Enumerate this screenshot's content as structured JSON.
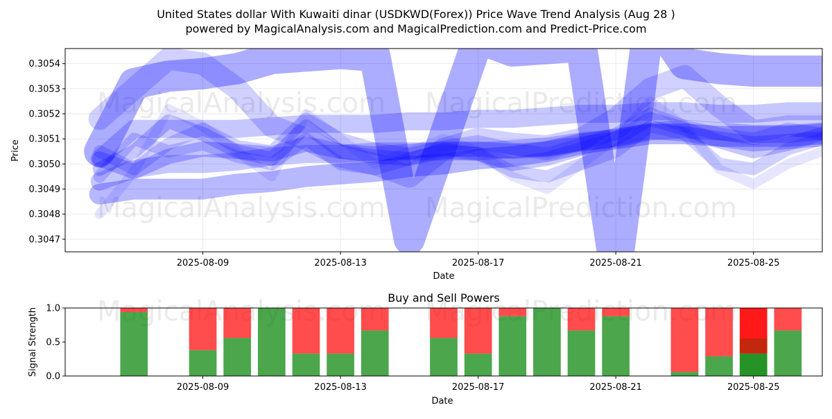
{
  "title_line1": "United States dollar With Kuwaiti dinar (USDKWD(Forex)) Price Wave Trend Analysis (Aug 28 )",
  "title_line2": "powered by MagicalAnalysis.com and MagicalPrediction.com and Predict-Price.com",
  "watermarks": [
    "MagicalAnalysis.com",
    "MagicalPrediction.com"
  ],
  "colors": {
    "wave": "#0000ff",
    "buy": "#008000",
    "sell": "#ff0000"
  },
  "chart_data": [
    {
      "type": "line",
      "title": "",
      "xlabel": "Date",
      "ylabel": "Price",
      "xlim": [
        "2025-08-05",
        "2025-08-27"
      ],
      "ylim": [
        0.30465,
        0.30546
      ],
      "x_ticks": [
        "2025-08-09",
        "2025-08-13",
        "2025-08-17",
        "2025-08-21",
        "2025-08-25"
      ],
      "y_ticks": [
        0.3047,
        0.3048,
        0.3049,
        0.305,
        0.3051,
        0.3052,
        0.3053,
        0.3054
      ],
      "y_tick_labels": [
        "0.3047",
        "0.3048",
        "0.3049",
        "0.3050",
        "0.3051",
        "0.3052",
        "0.3053",
        "0.3054"
      ],
      "grid": true,
      "legend": "none",
      "dates": [
        "2025-08-06",
        "2025-08-07",
        "2025-08-08",
        "2025-08-09",
        "2025-08-10",
        "2025-08-11",
        "2025-08-12",
        "2025-08-13",
        "2025-08-14",
        "2025-08-15",
        "2025-08-16",
        "2025-08-17",
        "2025-08-18",
        "2025-08-19",
        "2025-08-20",
        "2025-08-21",
        "2025-08-22",
        "2025-08-23",
        "2025-08-24",
        "2025-08-25",
        "2025-08-26",
        "2025-08-27"
      ],
      "series": [
        {
          "values": [
            0.30505,
            0.30532,
            0.30535,
            0.30536,
            0.30538,
            0.30542,
            0.30543,
            0.30544,
            0.30543,
            0.3047,
            0.3051,
            0.3055,
            0.30545,
            0.30546,
            0.30547,
            0.30456,
            0.3056,
            0.3054,
            0.30538,
            0.30537,
            0.30537,
            0.30537
          ],
          "width": 45,
          "opacity": 0.32
        },
        {
          "values": [
            0.30518,
            0.3053,
            0.30542,
            0.3054,
            0.3053,
            0.30515,
            0.3051,
            0.30503,
            0.305,
            0.30495,
            0.30506,
            0.3051,
            0.30508,
            0.30507,
            0.3051,
            0.30518,
            0.3053,
            0.30535,
            0.30523,
            0.30513,
            0.30515,
            0.30515
          ],
          "width": 32,
          "opacity": 0.18
        },
        {
          "values": [
            0.30488,
            0.3049,
            0.3049,
            0.3049,
            0.30492,
            0.30493,
            0.30495,
            0.30496,
            0.30497,
            0.30499,
            0.305,
            0.30502,
            0.30503,
            0.30505,
            0.30508,
            0.3051,
            0.30512,
            0.30512,
            0.30511,
            0.30511,
            0.30511,
            0.30512
          ],
          "width": 30,
          "opacity": 0.28
        },
        {
          "values": [
            0.30493,
            0.30498,
            0.305,
            0.305,
            0.30501,
            0.30503,
            0.30504,
            0.30504,
            0.30505,
            0.30505,
            0.30505,
            0.30505,
            0.30506,
            0.30507,
            0.30509,
            0.3051,
            0.30513,
            0.30514,
            0.30513,
            0.30512,
            0.30512,
            0.30513
          ],
          "width": 26,
          "opacity": 0.22
        },
        {
          "values": [
            0.30502,
            0.30514,
            0.30514,
            0.30514,
            0.30514,
            0.30515,
            0.30516,
            0.30516,
            0.30516,
            0.30517,
            0.30517,
            0.30518,
            0.30518,
            0.30519,
            0.3052,
            0.3052,
            0.30521,
            0.30521,
            0.3052,
            0.3052,
            0.30521,
            0.30521
          ],
          "width": 26,
          "opacity": 0.22
        },
        {
          "values": [
            0.30498,
            0.30505,
            0.30517,
            0.30512,
            0.30505,
            0.30502,
            0.30515,
            0.30505,
            0.30503,
            0.30502,
            0.30505,
            0.30504,
            0.305,
            0.30502,
            0.30506,
            0.3051,
            0.30518,
            0.30514,
            0.30509,
            0.30505,
            0.30508,
            0.30512
          ],
          "width": 20,
          "opacity": 0.22
        },
        {
          "values": [
            0.30495,
            0.3051,
            0.30505,
            0.30508,
            0.30503,
            0.305,
            0.3051,
            0.305,
            0.30498,
            0.30502,
            0.30506,
            0.30504,
            0.30497,
            0.30495,
            0.305,
            0.30505,
            0.30515,
            0.30512,
            0.305,
            0.30498,
            0.30506,
            0.3051
          ],
          "width": 18,
          "opacity": 0.18
        },
        {
          "values": [
            0.30505,
            0.30498,
            0.30508,
            0.30514,
            0.30507,
            0.30505,
            0.30518,
            0.3051,
            0.30506,
            0.30504,
            0.30507,
            0.30509,
            0.30506,
            0.30504,
            0.30508,
            0.30512,
            0.3052,
            0.30515,
            0.30512,
            0.3051,
            0.30514,
            0.30512
          ],
          "width": 18,
          "opacity": 0.18
        },
        {
          "values": [
            0.30502,
            0.30497,
            0.30503,
            0.30506,
            0.30505,
            0.30504,
            0.30508,
            0.30505,
            0.30504,
            0.30505,
            0.30506,
            0.30506,
            0.30505,
            0.30506,
            0.30508,
            0.3051,
            0.30513,
            0.30512,
            0.3051,
            0.30508,
            0.30509,
            0.3051
          ],
          "width": 22,
          "opacity": 0.24
        },
        {
          "values": [
            0.3048,
            0.30497,
            0.30522,
            0.30515,
            0.30505,
            0.30495,
            0.3052,
            0.3051,
            0.305,
            0.30505,
            0.3051,
            0.30505,
            0.30495,
            0.3049,
            0.305,
            0.3051,
            0.30525,
            0.30515,
            0.30498,
            0.30492,
            0.305,
            0.30505
          ],
          "width": 14,
          "opacity": 0.1
        }
      ]
    },
    {
      "type": "bar",
      "title": "Buy and Sell Powers",
      "xlabel": "Date",
      "ylabel": "Signal Strength",
      "xlim": [
        "2025-08-05",
        "2025-08-27"
      ],
      "ylim": [
        0,
        1
      ],
      "x_ticks": [
        "2025-08-09",
        "2025-08-13",
        "2025-08-17",
        "2025-08-21",
        "2025-08-25"
      ],
      "y_ticks": [
        0,
        0.5,
        1
      ],
      "y_tick_labels": [
        "0.0",
        "0.5",
        "1.0"
      ],
      "stacked": true,
      "dates": [
        "2025-08-07",
        "2025-08-09",
        "2025-08-10",
        "2025-08-11",
        "2025-08-12",
        "2025-08-13",
        "2025-08-14",
        "2025-08-16",
        "2025-08-17",
        "2025-08-18",
        "2025-08-19",
        "2025-08-20",
        "2025-08-21",
        "2025-08-23",
        "2025-08-24",
        "2025-08-25",
        "2025-08-26"
      ],
      "series": [
        {
          "role": "buy",
          "values": [
            0.94,
            0.38,
            0.56,
            1.0,
            0.33,
            0.33,
            0.67,
            0.56,
            0.33,
            0.88,
            1.0,
            0.67,
            0.88,
            0.06,
            0.29,
            0.33,
            0.67
          ]
        },
        {
          "role": "sell",
          "values": [
            0.06,
            0.62,
            0.44,
            0.0,
            0.67,
            0.67,
            0.33,
            0.44,
            0.67,
            0.12,
            0.0,
            0.33,
            0.12,
            0.94,
            0.71,
            0.67,
            0.33
          ]
        }
      ],
      "highlight": {
        "date": "2025-08-25",
        "buy_fraction": 0.33,
        "mid_fraction": 0.55
      }
    }
  ]
}
